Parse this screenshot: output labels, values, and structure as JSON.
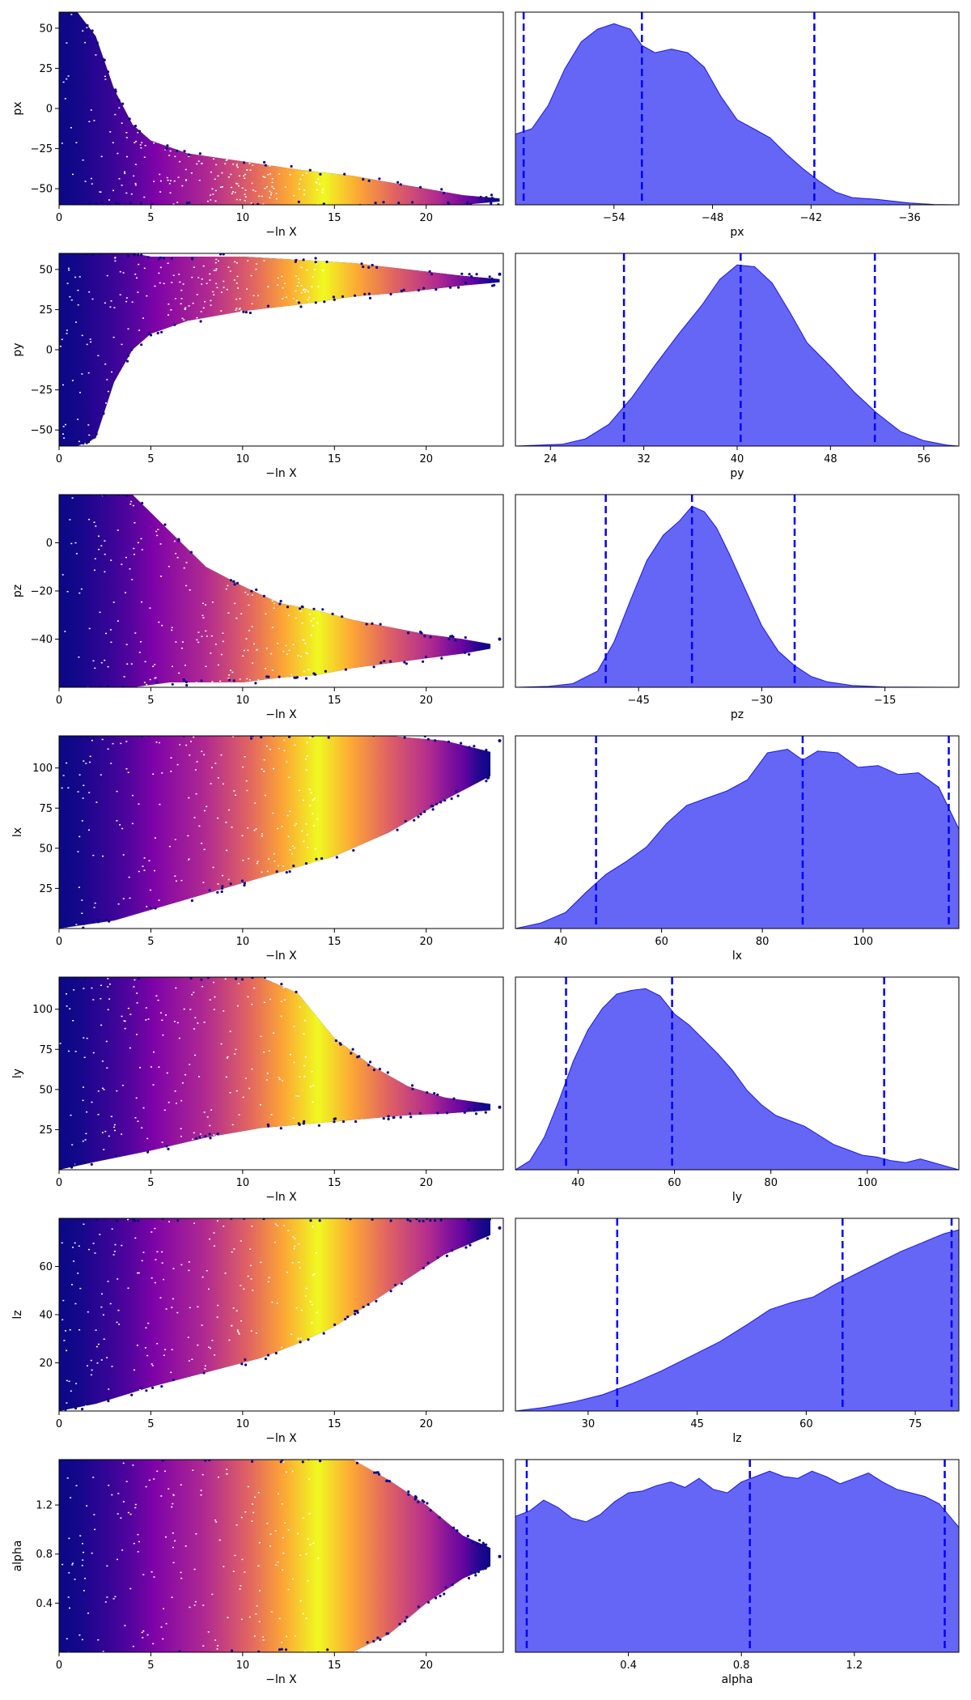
{
  "figure": {
    "type": "dynesty traceplot"
  },
  "chart_data": [
    {
      "type": "scatter",
      "param": "px",
      "xlabel": "−ln X",
      "ylabel": "px",
      "xlim": [
        0,
        24.2
      ],
      "ylim": [
        -60,
        60
      ],
      "xticks": [
        0,
        5,
        10,
        15,
        20
      ],
      "yticks": [
        -50,
        -25,
        0,
        25,
        50
      ],
      "trace": [
        [
          0,
          -60,
          60
        ],
        [
          1,
          -60,
          60
        ],
        [
          2,
          -60,
          45
        ],
        [
          3,
          -60,
          12
        ],
        [
          4,
          -60,
          -10
        ],
        [
          5,
          -60,
          -20
        ],
        [
          7,
          -60,
          -28
        ],
        [
          10,
          -60,
          -33
        ],
        [
          13,
          -60,
          -38
        ],
        [
          16,
          -60,
          -42
        ],
        [
          19,
          -60,
          -48
        ],
        [
          22,
          -60,
          -54
        ],
        [
          24,
          -58,
          -56
        ]
      ],
      "marks": {
        "x": 23.6,
        "y": -56
      }
    },
    {
      "type": "area",
      "param": "px",
      "xlabel": "px",
      "xlim": [
        -60,
        -33
      ],
      "xticks": [
        -54,
        -48,
        -42,
        -36
      ],
      "quantiles": [
        -59.5,
        -52.3,
        -41.8
      ],
      "density": [
        [
          -60,
          0.39
        ],
        [
          -59,
          0.42
        ],
        [
          -58,
          0.55
        ],
        [
          -57,
          0.75
        ],
        [
          -56,
          0.9
        ],
        [
          -55,
          0.97
        ],
        [
          -54,
          1.0
        ],
        [
          -53,
          0.97
        ],
        [
          -52.3,
          0.88
        ],
        [
          -51.5,
          0.84
        ],
        [
          -50.5,
          0.86
        ],
        [
          -49.5,
          0.84
        ],
        [
          -48.5,
          0.76
        ],
        [
          -47.5,
          0.6
        ],
        [
          -46.5,
          0.47
        ],
        [
          -45.5,
          0.42
        ],
        [
          -44.5,
          0.37
        ],
        [
          -43.5,
          0.28
        ],
        [
          -42.5,
          0.2
        ],
        [
          -41.5,
          0.13
        ],
        [
          -40.5,
          0.07
        ],
        [
          -39.5,
          0.04
        ],
        [
          -38,
          0.03
        ],
        [
          -36,
          0.01
        ],
        [
          -34.5,
          0.002
        ],
        [
          -33,
          0
        ]
      ]
    },
    {
      "type": "scatter",
      "param": "py",
      "xlabel": "−ln X",
      "ylabel": "py",
      "xlim": [
        0,
        24.2
      ],
      "ylim": [
        -60,
        60
      ],
      "xticks": [
        0,
        5,
        10,
        15,
        20
      ],
      "yticks": [
        -50,
        -25,
        0,
        25,
        50
      ],
      "trace": [
        [
          0,
          -60,
          60
        ],
        [
          1,
          -60,
          60
        ],
        [
          2,
          -55,
          60
        ],
        [
          3,
          -20,
          60
        ],
        [
          4,
          0,
          60
        ],
        [
          5,
          10,
          58
        ],
        [
          7,
          18,
          58
        ],
        [
          10,
          24,
          58
        ],
        [
          13,
          28,
          56
        ],
        [
          16,
          33,
          54
        ],
        [
          19,
          36,
          50
        ],
        [
          22,
          40,
          46
        ],
        [
          24,
          42,
          44
        ]
      ],
      "marks": {
        "x": 24,
        "y": 47
      }
    },
    {
      "type": "area",
      "param": "py",
      "xlabel": "py",
      "xlim": [
        21,
        59
      ],
      "xticks": [
        24,
        32,
        40,
        48,
        56
      ],
      "quantiles": [
        30.3,
        40.3,
        51.8
      ],
      "density": [
        [
          21,
          0
        ],
        [
          25,
          0.01
        ],
        [
          27,
          0.04
        ],
        [
          29,
          0.12
        ],
        [
          31,
          0.27
        ],
        [
          33,
          0.45
        ],
        [
          35,
          0.62
        ],
        [
          37,
          0.78
        ],
        [
          38.5,
          0.92
        ],
        [
          40,
          1.0
        ],
        [
          41.5,
          0.99
        ],
        [
          43,
          0.9
        ],
        [
          44.5,
          0.74
        ],
        [
          46,
          0.57
        ],
        [
          48,
          0.44
        ],
        [
          50,
          0.3
        ],
        [
          52,
          0.18
        ],
        [
          54,
          0.08
        ],
        [
          56,
          0.03
        ],
        [
          58,
          0.005
        ],
        [
          59,
          0
        ]
      ]
    },
    {
      "type": "scatter",
      "param": "pz",
      "xlabel": "−ln X",
      "ylabel": "pz",
      "xlim": [
        0,
        24.2
      ],
      "ylim": [
        -60,
        20
      ],
      "xticks": [
        0,
        5,
        10,
        15,
        20
      ],
      "yticks": [
        -40,
        -20,
        0
      ],
      "trace": [
        [
          0,
          -60,
          20
        ],
        [
          2,
          -60,
          20
        ],
        [
          4,
          -60,
          20
        ],
        [
          6,
          -58,
          5
        ],
        [
          8,
          -58,
          -10
        ],
        [
          10,
          -58,
          -18
        ],
        [
          12,
          -56,
          -25
        ],
        [
          14,
          -55,
          -28
        ],
        [
          16,
          -52,
          -32
        ],
        [
          18,
          -50,
          -35
        ],
        [
          20,
          -48,
          -38
        ],
        [
          22,
          -46,
          -40
        ],
        [
          23.5,
          -44,
          -42
        ]
      ],
      "marks": {
        "x": 24,
        "y": -40
      }
    },
    {
      "type": "area",
      "param": "pz",
      "xlabel": "pz",
      "xlim": [
        -60,
        -6
      ],
      "xticks": [
        -45,
        -30,
        -15
      ],
      "quantiles": [
        -49,
        -38.5,
        -26
      ],
      "density": [
        [
          -60,
          0
        ],
        [
          -56,
          0.005
        ],
        [
          -53,
          0.02
        ],
        [
          -50,
          0.09
        ],
        [
          -48,
          0.25
        ],
        [
          -46,
          0.48
        ],
        [
          -44,
          0.7
        ],
        [
          -42,
          0.84
        ],
        [
          -40,
          0.92
        ],
        [
          -38.5,
          1.0
        ],
        [
          -37,
          0.97
        ],
        [
          -35.5,
          0.88
        ],
        [
          -34,
          0.74
        ],
        [
          -32,
          0.54
        ],
        [
          -30,
          0.34
        ],
        [
          -28,
          0.2
        ],
        [
          -26,
          0.12
        ],
        [
          -24,
          0.06
        ],
        [
          -22,
          0.03
        ],
        [
          -19,
          0.01
        ],
        [
          -15,
          0.002
        ],
        [
          -6,
          0
        ]
      ]
    },
    {
      "type": "scatter",
      "param": "lx",
      "xlabel": "−ln X",
      "ylabel": "lx",
      "xlim": [
        0,
        24.2
      ],
      "ylim": [
        0,
        120
      ],
      "xticks": [
        0,
        5,
        10,
        15,
        20
      ],
      "yticks": [
        25,
        50,
        75,
        100
      ],
      "trace": [
        [
          0,
          0,
          120
        ],
        [
          3,
          5,
          120
        ],
        [
          6,
          15,
          120
        ],
        [
          9,
          25,
          120
        ],
        [
          12,
          35,
          120
        ],
        [
          15,
          45,
          120
        ],
        [
          18,
          60,
          120
        ],
        [
          21,
          80,
          117
        ],
        [
          23.5,
          95,
          110
        ]
      ],
      "marks": {
        "x": 24,
        "y": 117
      }
    },
    {
      "type": "area",
      "param": "lx",
      "xlabel": "lx",
      "xlim": [
        31,
        119
      ],
      "xticks": [
        40,
        60,
        80,
        100
      ],
      "quantiles": [
        47,
        88,
        117
      ],
      "density": [
        [
          31,
          0
        ],
        [
          36,
          0.03
        ],
        [
          41,
          0.09
        ],
        [
          45,
          0.2
        ],
        [
          49,
          0.3
        ],
        [
          53,
          0.37
        ],
        [
          57,
          0.45
        ],
        [
          61,
          0.58
        ],
        [
          65,
          0.68
        ],
        [
          69,
          0.72
        ],
        [
          73,
          0.76
        ],
        [
          77,
          0.82
        ],
        [
          81,
          0.97
        ],
        [
          85,
          0.99
        ],
        [
          88,
          0.93
        ],
        [
          91,
          0.98
        ],
        [
          95,
          0.97
        ],
        [
          99,
          0.89
        ],
        [
          103,
          0.9
        ],
        [
          107,
          0.85
        ],
        [
          111,
          0.86
        ],
        [
          115,
          0.78
        ],
        [
          119,
          0.55
        ]
      ]
    },
    {
      "type": "scatter",
      "param": "ly",
      "xlabel": "−ln X",
      "ylabel": "ly",
      "xlim": [
        0,
        24.2
      ],
      "ylim": [
        0,
        120
      ],
      "xticks": [
        0,
        5,
        10,
        15,
        20
      ],
      "yticks": [
        25,
        50,
        75,
        100
      ],
      "trace": [
        [
          0,
          0,
          120
        ],
        [
          2,
          5,
          120
        ],
        [
          5,
          12,
          120
        ],
        [
          8,
          20,
          120
        ],
        [
          11,
          26,
          120
        ],
        [
          13,
          28,
          110
        ],
        [
          15,
          30,
          82
        ],
        [
          17,
          32,
          65
        ],
        [
          19,
          34,
          52
        ],
        [
          21,
          35,
          45
        ],
        [
          23.5,
          37,
          41
        ]
      ],
      "marks": {
        "x": 24,
        "y": 39
      }
    },
    {
      "type": "area",
      "param": "ly",
      "xlabel": "ly",
      "xlim": [
        27,
        119
      ],
      "xticks": [
        40,
        60,
        80,
        100
      ],
      "quantiles": [
        37.5,
        59.5,
        103.5
      ],
      "density": [
        [
          27,
          0
        ],
        [
          30,
          0.05
        ],
        [
          33,
          0.18
        ],
        [
          36,
          0.38
        ],
        [
          39,
          0.6
        ],
        [
          42,
          0.77
        ],
        [
          45,
          0.89
        ],
        [
          48,
          0.97
        ],
        [
          51,
          0.99
        ],
        [
          54,
          1.0
        ],
        [
          57,
          0.96
        ],
        [
          60,
          0.86
        ],
        [
          63,
          0.8
        ],
        [
          66,
          0.72
        ],
        [
          69,
          0.64
        ],
        [
          72,
          0.55
        ],
        [
          75,
          0.44
        ],
        [
          78,
          0.36
        ],
        [
          81,
          0.3
        ],
        [
          84,
          0.27
        ],
        [
          87,
          0.24
        ],
        [
          90,
          0.19
        ],
        [
          93,
          0.14
        ],
        [
          96,
          0.11
        ],
        [
          99,
          0.08
        ],
        [
          102,
          0.07
        ],
        [
          105,
          0.05
        ],
        [
          108,
          0.04
        ],
        [
          111,
          0.06
        ],
        [
          115,
          0.03
        ],
        [
          119,
          0
        ]
      ]
    },
    {
      "type": "scatter",
      "param": "lz",
      "xlabel": "−ln X",
      "ylabel": "lz",
      "xlim": [
        0,
        24.2
      ],
      "ylim": [
        0,
        80
      ],
      "xticks": [
        0,
        5,
        10,
        15,
        20
      ],
      "yticks": [
        20,
        40,
        60
      ],
      "trace": [
        [
          0,
          0,
          80
        ],
        [
          2,
          3,
          80
        ],
        [
          5,
          10,
          80
        ],
        [
          8,
          16,
          80
        ],
        [
          11,
          22,
          80
        ],
        [
          13,
          28,
          80
        ],
        [
          15,
          35,
          80
        ],
        [
          17,
          45,
          80
        ],
        [
          19,
          55,
          80
        ],
        [
          21,
          65,
          80
        ],
        [
          23.5,
          73,
          80
        ]
      ],
      "marks": {
        "x": 24,
        "y": 76
      }
    },
    {
      "type": "area",
      "param": "lz",
      "xlabel": "lz",
      "xlim": [
        20,
        81
      ],
      "xticks": [
        30,
        45,
        60,
        75
      ],
      "quantiles": [
        34,
        65,
        80
      ],
      "density": [
        [
          20,
          0
        ],
        [
          24,
          0.02
        ],
        [
          28,
          0.05
        ],
        [
          32,
          0.09
        ],
        [
          36,
          0.15
        ],
        [
          40,
          0.22
        ],
        [
          44,
          0.3
        ],
        [
          48,
          0.38
        ],
        [
          52,
          0.48
        ],
        [
          55,
          0.56
        ],
        [
          58,
          0.6
        ],
        [
          61,
          0.63
        ],
        [
          64,
          0.7
        ],
        [
          67,
          0.76
        ],
        [
          70,
          0.82
        ],
        [
          73,
          0.88
        ],
        [
          76,
          0.93
        ],
        [
          79,
          0.98
        ],
        [
          81,
          1.0
        ]
      ]
    },
    {
      "type": "scatter",
      "param": "alpha",
      "xlabel": "−ln X",
      "ylabel": "alpha",
      "xlim": [
        0,
        24.2
      ],
      "ylim": [
        0,
        1.57
      ],
      "xticks": [
        0,
        5,
        10,
        15,
        20
      ],
      "yticks": [
        0.4,
        0.8,
        1.2
      ],
      "trace": [
        [
          0,
          0,
          1.57
        ],
        [
          8,
          0,
          1.57
        ],
        [
          12,
          0,
          1.57
        ],
        [
          16,
          0,
          1.57
        ],
        [
          18,
          0.15,
          1.4
        ],
        [
          20,
          0.4,
          1.2
        ],
        [
          22,
          0.6,
          0.95
        ],
        [
          23.5,
          0.7,
          0.85
        ]
      ],
      "marks": {
        "x": 24,
        "y": 0.78
      }
    },
    {
      "type": "area",
      "param": "alpha",
      "xlabel": "alpha",
      "xlim": [
        0,
        1.57
      ],
      "xticks": [
        0.4,
        0.8,
        1.2
      ],
      "quantiles": [
        0.04,
        0.83,
        1.52
      ],
      "density": [
        [
          0,
          0.75
        ],
        [
          0.05,
          0.78
        ],
        [
          0.1,
          0.84
        ],
        [
          0.15,
          0.8
        ],
        [
          0.2,
          0.74
        ],
        [
          0.25,
          0.72
        ],
        [
          0.3,
          0.76
        ],
        [
          0.35,
          0.83
        ],
        [
          0.4,
          0.88
        ],
        [
          0.45,
          0.89
        ],
        [
          0.5,
          0.92
        ],
        [
          0.55,
          0.94
        ],
        [
          0.6,
          0.91
        ],
        [
          0.65,
          0.96
        ],
        [
          0.7,
          0.9
        ],
        [
          0.75,
          0.88
        ],
        [
          0.8,
          0.94
        ],
        [
          0.85,
          0.97
        ],
        [
          0.9,
          1.0
        ],
        [
          0.95,
          0.97
        ],
        [
          1.0,
          0.96
        ],
        [
          1.05,
          1.0
        ],
        [
          1.1,
          0.97
        ],
        [
          1.15,
          0.93
        ],
        [
          1.2,
          0.96
        ],
        [
          1.25,
          0.99
        ],
        [
          1.3,
          0.94
        ],
        [
          1.35,
          0.9
        ],
        [
          1.4,
          0.88
        ],
        [
          1.45,
          0.86
        ],
        [
          1.5,
          0.82
        ],
        [
          1.57,
          0.69
        ]
      ]
    }
  ]
}
